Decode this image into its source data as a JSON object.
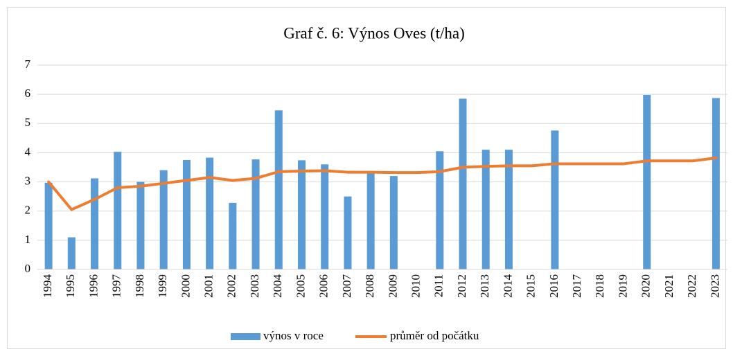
{
  "chart_data": {
    "type": "bar_line",
    "title": "Graf č. 6: Výnos Oves  (t/ha)",
    "categories": [
      "1994",
      "1995",
      "1996",
      "1997",
      "1998",
      "1999",
      "2000",
      "2001",
      "2002",
      "2003",
      "2004",
      "2005",
      "2006",
      "2007",
      "2008",
      "2009",
      "2010",
      "2011",
      "2012",
      "2013",
      "2014",
      "2015",
      "2016",
      "2017",
      "2018",
      "2019",
      "2020",
      "2021",
      "2022",
      "2023"
    ],
    "series": [
      {
        "name": "výnos v roce",
        "type": "bar",
        "color": "#5b9bd5",
        "values": [
          2.97,
          1.1,
          3.12,
          4.03,
          3.0,
          3.4,
          3.75,
          3.83,
          2.28,
          3.77,
          5.45,
          3.74,
          3.6,
          2.5,
          3.3,
          3.2,
          null,
          4.05,
          5.85,
          4.1,
          4.1,
          null,
          4.76,
          null,
          null,
          null,
          5.98,
          null,
          null,
          5.87
        ]
      },
      {
        "name": "průměr od počátku",
        "type": "line",
        "color": "#ed7d31",
        "values": [
          3.0,
          2.05,
          2.4,
          2.8,
          2.85,
          2.95,
          3.05,
          3.15,
          3.05,
          3.12,
          3.35,
          3.37,
          3.38,
          3.33,
          3.33,
          3.32,
          3.32,
          3.35,
          3.5,
          3.53,
          3.55,
          3.55,
          3.62,
          3.62,
          3.62,
          3.62,
          3.72,
          3.72,
          3.72,
          3.82
        ]
      }
    ],
    "ylim": [
      0,
      7
    ],
    "yticks": [
      0,
      1,
      2,
      3,
      4,
      5,
      6,
      7
    ],
    "grid": true,
    "legend": "bottom"
  }
}
